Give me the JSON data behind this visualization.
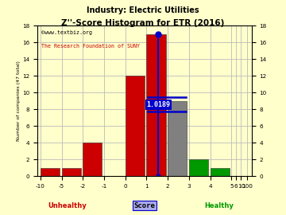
{
  "title": "Z''-Score Histogram for ETR (2016)",
  "subtitle": "Industry: Electric Utilities",
  "watermark1": "©www.textbiz.org",
  "watermark2": "The Research Foundation of SUNY",
  "xlabel_score": "Score",
  "xlabel_unhealthy": "Unhealthy",
  "xlabel_healthy": "Healthy",
  "ylabel_left": "Number of companies (47 total)",
  "etr_value": 1.0189,
  "bar_positions": [
    -11,
    -6,
    -2,
    -1,
    0,
    1,
    1.5,
    3.5,
    4.5
  ],
  "bar_widths": [
    1,
    1,
    1,
    1,
    1,
    1,
    1,
    1,
    1
  ],
  "bar_heights": [
    1,
    1,
    4,
    0,
    12,
    17,
    9,
    2,
    1
  ],
  "bar_colors": [
    "#cc0000",
    "#cc0000",
    "#cc0000",
    "#cc0000",
    "#cc0000",
    "#cc0000",
    "#808080",
    "#009900",
    "#009900"
  ],
  "red_color": "#cc0000",
  "green_color": "#009900",
  "gray_color": "#808080",
  "blue_color": "#0000cc",
  "bg_color": "#ffffcc",
  "grid_color": "#bbbbbb",
  "yticks": [
    0,
    2,
    4,
    6,
    8,
    10,
    12,
    14,
    16,
    18
  ],
  "xtick_labels": [
    "-10",
    "-5",
    "-2",
    "-1",
    "0",
    "1",
    "2",
    "3",
    "4",
    "5",
    "6",
    "10",
    "100"
  ],
  "xtick_positions": [
    -11,
    -6,
    -2,
    -1,
    0,
    1,
    2,
    3,
    4,
    5,
    6,
    10,
    100
  ],
  "xlim": [
    -12.5,
    101
  ],
  "ylim": [
    0,
    18
  ]
}
